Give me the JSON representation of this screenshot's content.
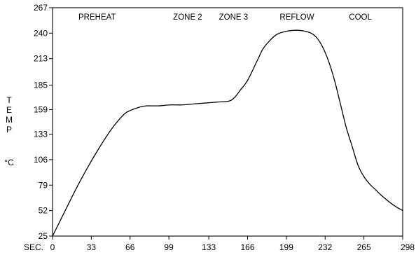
{
  "chart_data": {
    "type": "line",
    "title": "",
    "xlabel": "SEC.",
    "ylabel": [
      "T",
      "E",
      "M",
      "P",
      "°C"
    ],
    "xlim": [
      0,
      298
    ],
    "ylim": [
      25,
      267
    ],
    "x_ticks": [
      "0",
      "33",
      "66",
      "99",
      "133",
      "166",
      "199",
      "232",
      "265",
      "298"
    ],
    "y_ticks": [
      "25",
      "52",
      "79",
      "106",
      "133",
      "159",
      "185",
      "213",
      "240",
      "267"
    ],
    "zones": [
      "PREHEAT",
      "ZONE 2",
      "ZONE 3",
      "REFLOW",
      "COOL"
    ],
    "grid": false,
    "series": [
      {
        "name": "",
        "x": [
          0,
          10,
          20,
          30,
          40,
          50,
          60,
          66,
          75,
          80,
          90,
          100,
          110,
          120,
          130,
          140,
          150,
          155,
          160,
          166,
          175,
          180,
          190,
          199,
          205,
          210,
          215,
          220,
          225,
          230,
          235,
          240,
          245,
          250,
          255,
          260,
          265,
          270,
          275,
          280,
          290,
          298
        ],
        "y": [
          25,
          50,
          75,
          98,
          119,
          138,
          153,
          158,
          162,
          163,
          163,
          164,
          164,
          165,
          166,
          167,
          168,
          172,
          180,
          190,
          213,
          225,
          238,
          242,
          243,
          243,
          242,
          240,
          235,
          225,
          210,
          190,
          165,
          140,
          120,
          100,
          88,
          80,
          74,
          68,
          58,
          52
        ]
      }
    ]
  }
}
